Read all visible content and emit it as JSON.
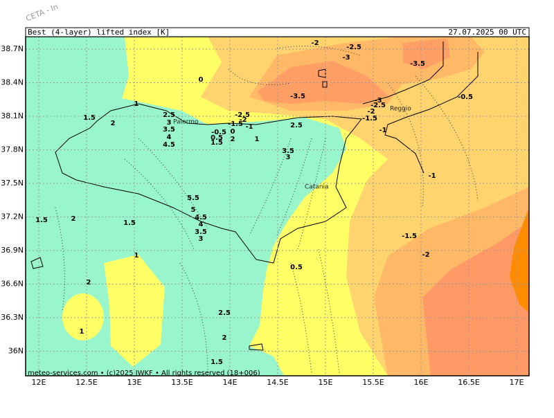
{
  "watermark": "CETA - In",
  "header": {
    "left": "Best (4-layer) lifted index [K]",
    "right": "27.07.2025 00 UTC"
  },
  "lat_labels": [
    "38.7N",
    "38.4N",
    "38.1N",
    "37.8N",
    "37.5N",
    "37.2N",
    "36.9N",
    "36.6N",
    "36.3N",
    "36N"
  ],
  "lon_labels": [
    "12E",
    "12.5E",
    "13E",
    "13.5E",
    "14E",
    "14.5E",
    "15E",
    "15.5E",
    "16E",
    "16.5E",
    "17E"
  ],
  "places": [
    "Palermo",
    "Catania",
    "Reggio"
  ],
  "contour_labels": [
    "-2",
    "-2.5",
    "-3",
    "-3.5",
    "0",
    "-3.5",
    "-0.5",
    "1",
    "-3",
    "-2.5",
    "-2",
    "-1.5",
    "-2.5",
    "-2",
    "-1.5",
    "-1",
    "1.5",
    "2",
    "2.5",
    "3",
    "3.5",
    "4",
    "4.5",
    "-0.5",
    "0",
    "0.5",
    "1.5",
    "2",
    "1",
    "2.5",
    "-1",
    "3.5",
    "3",
    "-1",
    "5.5",
    "5",
    "4.5",
    "4",
    "3.5",
    "3",
    "1.5",
    "2",
    "1.5",
    "-1.5",
    "-2",
    "1",
    "0.5",
    "2",
    "2.5",
    "1",
    "2",
    "1.5"
  ],
  "footer": "meteo-services.com • (c)2025 IWKF • All rights reserved (18+006)"
}
